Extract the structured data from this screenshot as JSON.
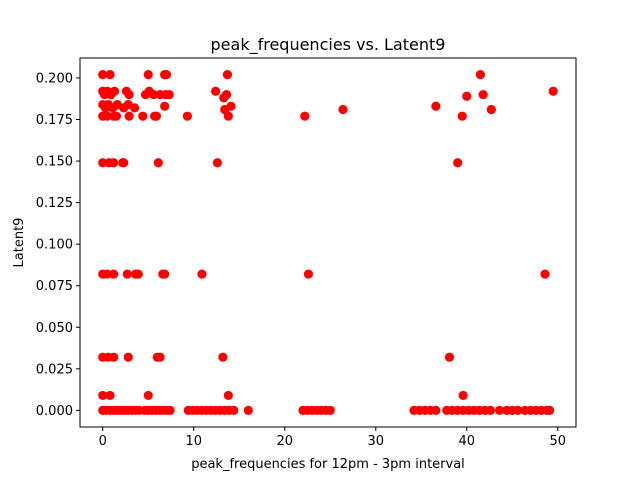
{
  "chart_data": {
    "type": "scatter",
    "title": "peak_frequencies vs. Latent9",
    "xlabel": "peak_frequencies for 12pm - 3pm interval",
    "ylabel": "Latent9",
    "xlim": [
      -2.5,
      52.0
    ],
    "ylim": [
      -0.01,
      0.212
    ],
    "xticks": [
      0,
      10,
      20,
      30,
      40,
      50
    ],
    "xtick_labels": [
      "0",
      "10",
      "20",
      "30",
      "40",
      "50"
    ],
    "yticks": [
      0.0,
      0.025,
      0.05,
      0.075,
      0.1,
      0.125,
      0.15,
      0.175,
      0.2
    ],
    "ytick_labels": [
      "0.000",
      "0.025",
      "0.050",
      "0.075",
      "0.100",
      "0.125",
      "0.150",
      "0.175",
      "0.200"
    ],
    "grid": false,
    "marker_color": "#ff0000",
    "series": [
      {
        "points": [
          [
            0.0,
            0.202
          ],
          [
            0.8,
            0.202
          ],
          [
            5.0,
            0.202
          ],
          [
            6.8,
            0.202
          ],
          [
            7.0,
            0.202
          ],
          [
            13.7,
            0.202
          ],
          [
            41.5,
            0.202
          ],
          [
            0.0,
            0.192
          ],
          [
            0.2,
            0.19
          ],
          [
            0.5,
            0.192
          ],
          [
            0.9,
            0.19
          ],
          [
            1.3,
            0.192
          ],
          [
            2.6,
            0.192
          ],
          [
            2.9,
            0.19
          ],
          [
            4.7,
            0.19
          ],
          [
            5.1,
            0.192
          ],
          [
            5.6,
            0.19
          ],
          [
            6.3,
            0.19
          ],
          [
            6.9,
            0.19
          ],
          [
            7.3,
            0.19
          ],
          [
            12.4,
            0.192
          ],
          [
            13.3,
            0.188
          ],
          [
            13.6,
            0.19
          ],
          [
            40.0,
            0.189
          ],
          [
            41.8,
            0.19
          ],
          [
            49.5,
            0.192
          ],
          [
            0.0,
            0.184
          ],
          [
            0.3,
            0.182
          ],
          [
            0.6,
            0.184
          ],
          [
            1.1,
            0.182
          ],
          [
            1.6,
            0.184
          ],
          [
            2.3,
            0.182
          ],
          [
            2.8,
            0.184
          ],
          [
            3.5,
            0.182
          ],
          [
            6.8,
            0.183
          ],
          [
            13.4,
            0.181
          ],
          [
            14.1,
            0.183
          ],
          [
            26.4,
            0.181
          ],
          [
            36.6,
            0.183
          ],
          [
            42.7,
            0.181
          ],
          [
            0.0,
            0.177
          ],
          [
            0.5,
            0.177
          ],
          [
            1.2,
            0.177
          ],
          [
            1.5,
            0.177
          ],
          [
            2.9,
            0.177
          ],
          [
            4.4,
            0.177
          ],
          [
            5.7,
            0.177
          ],
          [
            5.9,
            0.177
          ],
          [
            9.3,
            0.177
          ],
          [
            13.8,
            0.177
          ],
          [
            22.2,
            0.177
          ],
          [
            39.5,
            0.177
          ],
          [
            0.0,
            0.149
          ],
          [
            0.7,
            0.149
          ],
          [
            1.2,
            0.149
          ],
          [
            2.2,
            0.149
          ],
          [
            2.3,
            0.149
          ],
          [
            6.1,
            0.149
          ],
          [
            12.6,
            0.149
          ],
          [
            39.0,
            0.149
          ],
          [
            0.0,
            0.082
          ],
          [
            0.5,
            0.082
          ],
          [
            1.2,
            0.082
          ],
          [
            2.7,
            0.082
          ],
          [
            3.6,
            0.082
          ],
          [
            3.9,
            0.082
          ],
          [
            6.6,
            0.082
          ],
          [
            6.8,
            0.082
          ],
          [
            10.9,
            0.082
          ],
          [
            22.6,
            0.082
          ],
          [
            48.6,
            0.082
          ],
          [
            0.0,
            0.032
          ],
          [
            0.6,
            0.032
          ],
          [
            1.2,
            0.032
          ],
          [
            2.8,
            0.032
          ],
          [
            6.0,
            0.032
          ],
          [
            6.3,
            0.032
          ],
          [
            13.2,
            0.032
          ],
          [
            38.1,
            0.032
          ],
          [
            0.0,
            0.009
          ],
          [
            0.8,
            0.009
          ],
          [
            5.0,
            0.009
          ],
          [
            13.8,
            0.009
          ],
          [
            39.6,
            0.009
          ],
          [
            0.0,
            0.0
          ],
          [
            0.4,
            0.0
          ],
          [
            0.8,
            0.0
          ],
          [
            1.2,
            0.0
          ],
          [
            1.6,
            0.0
          ],
          [
            2.0,
            0.0
          ],
          [
            2.4,
            0.0
          ],
          [
            2.8,
            0.0
          ],
          [
            3.2,
            0.0
          ],
          [
            3.6,
            0.0
          ],
          [
            4.0,
            0.0
          ],
          [
            4.6,
            0.0
          ],
          [
            5.0,
            0.0
          ],
          [
            5.4,
            0.0
          ],
          [
            5.8,
            0.0
          ],
          [
            6.2,
            0.0
          ],
          [
            6.6,
            0.0
          ],
          [
            7.0,
            0.0
          ],
          [
            7.4,
            0.0
          ],
          [
            9.4,
            0.0
          ],
          [
            9.9,
            0.0
          ],
          [
            10.4,
            0.0
          ],
          [
            10.9,
            0.0
          ],
          [
            11.4,
            0.0
          ],
          [
            11.9,
            0.0
          ],
          [
            12.4,
            0.0
          ],
          [
            12.9,
            0.0
          ],
          [
            13.4,
            0.0
          ],
          [
            13.9,
            0.0
          ],
          [
            14.4,
            0.0
          ],
          [
            16.0,
            0.0
          ],
          [
            22.0,
            0.0
          ],
          [
            22.5,
            0.0
          ],
          [
            23.0,
            0.0
          ],
          [
            23.5,
            0.0
          ],
          [
            24.0,
            0.0
          ],
          [
            24.5,
            0.0
          ],
          [
            25.0,
            0.0
          ],
          [
            34.2,
            0.0
          ],
          [
            34.8,
            0.0
          ],
          [
            35.4,
            0.0
          ],
          [
            36.0,
            0.0
          ],
          [
            36.6,
            0.0
          ],
          [
            37.8,
            0.0
          ],
          [
            38.4,
            0.0
          ],
          [
            39.0,
            0.0
          ],
          [
            39.6,
            0.0
          ],
          [
            40.2,
            0.0
          ],
          [
            40.8,
            0.0
          ],
          [
            41.4,
            0.0
          ],
          [
            42.0,
            0.0
          ],
          [
            42.6,
            0.0
          ],
          [
            43.6,
            0.0
          ],
          [
            44.4,
            0.0
          ],
          [
            45.0,
            0.0
          ],
          [
            45.6,
            0.0
          ],
          [
            46.4,
            0.0
          ],
          [
            47.0,
            0.0
          ],
          [
            47.6,
            0.0
          ],
          [
            48.2,
            0.0
          ],
          [
            48.8,
            0.0
          ],
          [
            49.1,
            0.0
          ]
        ]
      }
    ]
  }
}
